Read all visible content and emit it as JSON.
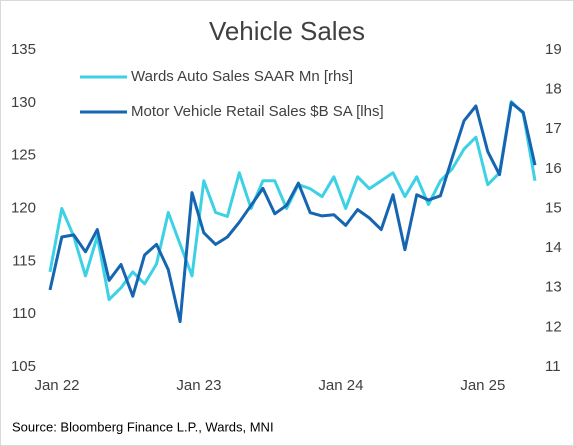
{
  "chart_data": {
    "type": "line",
    "title": "Vehicle Sales",
    "source": "Source: Bloomberg Finance L.P., Wards, MNI",
    "categories": [
      "Jan 22",
      null,
      null,
      null,
      null,
      null,
      null,
      null,
      null,
      null,
      null,
      null,
      "Jan 23",
      null,
      null,
      null,
      null,
      null,
      null,
      null,
      null,
      null,
      null,
      null,
      "Jan 24",
      null,
      null,
      null,
      null,
      null,
      null,
      null,
      null,
      null,
      null,
      null,
      "Jan 25",
      null,
      null,
      null,
      null,
      null
    ],
    "series": [
      {
        "name": "Wards Auto Sales SAAR Mn [rhs]",
        "color": "#3dd1e6",
        "axis": "y2",
        "values": [
          13.4,
          15.0,
          14.3,
          13.3,
          14.3,
          12.7,
          13.0,
          13.4,
          13.1,
          13.6,
          14.9,
          14.1,
          13.3,
          15.7,
          14.9,
          14.8,
          15.9,
          15.0,
          15.7,
          15.7,
          15.0,
          15.6,
          15.5,
          15.3,
          15.8,
          15.0,
          15.8,
          15.5,
          15.7,
          15.9,
          15.3,
          15.8,
          15.1,
          15.7,
          16.0,
          16.5,
          16.8,
          15.6,
          15.9,
          17.7,
          17.4,
          15.7
        ]
      },
      {
        "name": "Motor Vehicle Retail Sales $B SA [lhs]",
        "color": "#1565b0",
        "values": [
          112.3,
          117.3,
          117.5,
          115.9,
          118.0,
          113.2,
          114.7,
          111.7,
          115.6,
          116.6,
          114.2,
          109.3,
          121.5,
          117.7,
          116.6,
          117.3,
          118.7,
          120.3,
          121.9,
          119.5,
          120.3,
          122.4,
          119.6,
          119.3,
          119.4,
          118.4,
          119.9,
          119.1,
          118.0,
          121.3,
          116.1,
          121.3,
          120.8,
          121.2,
          124.8,
          128.3,
          129.7,
          125.4,
          123.2,
          130.0,
          129.1,
          124.1
        ]
      }
    ],
    "ylim": [
      105,
      135
    ],
    "yticks": [
      105,
      110,
      115,
      120,
      125,
      130,
      135
    ],
    "y2lim": [
      11,
      19
    ],
    "y2ticks": [
      11,
      12,
      13,
      14,
      15,
      16,
      17,
      18,
      19
    ],
    "grid": false
  }
}
